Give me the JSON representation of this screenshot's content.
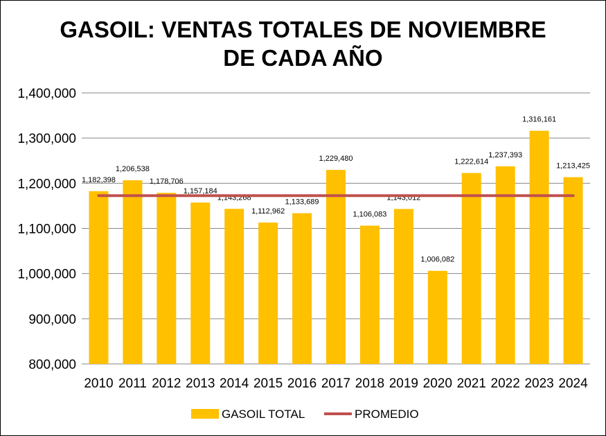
{
  "chart_data": {
    "type": "bar",
    "title_line1": "GASOIL: VENTAS TOTALES DE NOVIEMBRE",
    "title_line2": "DE CADA AÑO",
    "categories": [
      "2010",
      "2011",
      "2012",
      "2013",
      "2014",
      "2015",
      "2016",
      "2017",
      "2018",
      "2019",
      "2020",
      "2021",
      "2022",
      "2023",
      "2024"
    ],
    "series": [
      {
        "name": "GASOIL TOTAL",
        "type": "bar",
        "color": "#FFC000",
        "values": [
          1182398,
          1206538,
          1178706,
          1157184,
          1143268,
          1112962,
          1133689,
          1229480,
          1106083,
          1143012,
          1006082,
          1222614,
          1237393,
          1316161,
          1213425
        ],
        "labels": [
          "1,182,398",
          "1,206,538",
          "1,178,706",
          "1,157,184",
          "1,143,268",
          "1,112,962",
          "1,133,689",
          "1,229,480",
          "1,106,083",
          "1,143,012",
          "1,006,082",
          "1,222,614",
          "1,237,393",
          "1,316,161",
          "1,213,425"
        ]
      },
      {
        "name": "PROMEDIO",
        "type": "line",
        "color": "#C0504D",
        "value": 1172600
      }
    ],
    "ylim": [
      800000,
      1400000
    ],
    "yticks": [
      800000,
      900000,
      1000000,
      1100000,
      1200000,
      1300000,
      1400000
    ],
    "ytick_labels": [
      "800,000",
      "900,000",
      "1,000,000",
      "1,100,000",
      "1,200,000",
      "1,300,000",
      "1,400,000"
    ],
    "grid": true,
    "legend": "bottom",
    "xlabel": "",
    "ylabel": ""
  }
}
